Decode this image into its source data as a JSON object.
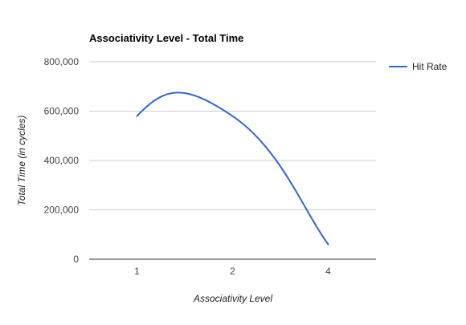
{
  "chart_data": {
    "type": "line",
    "title": "Associativity Level - Total Time",
    "xlabel": "Associativity Level",
    "ylabel": "Total Time (in cycles)",
    "categories": [
      "1",
      "2",
      "4"
    ],
    "series": [
      {
        "name": "Hit Rate",
        "values": [
          580000,
          580000,
          60000
        ],
        "color": "#3366cc"
      }
    ],
    "ylim": [
      0,
      800000
    ],
    "yticks": [
      {
        "value": 0,
        "label": "0"
      },
      {
        "value": 200000,
        "label": "200,000"
      },
      {
        "value": 400000,
        "label": "400,000"
      },
      {
        "value": 600000,
        "label": "600,000"
      },
      {
        "value": 800000,
        "label": "800,000"
      }
    ],
    "grid": true,
    "smooth": true,
    "legend": "right"
  }
}
